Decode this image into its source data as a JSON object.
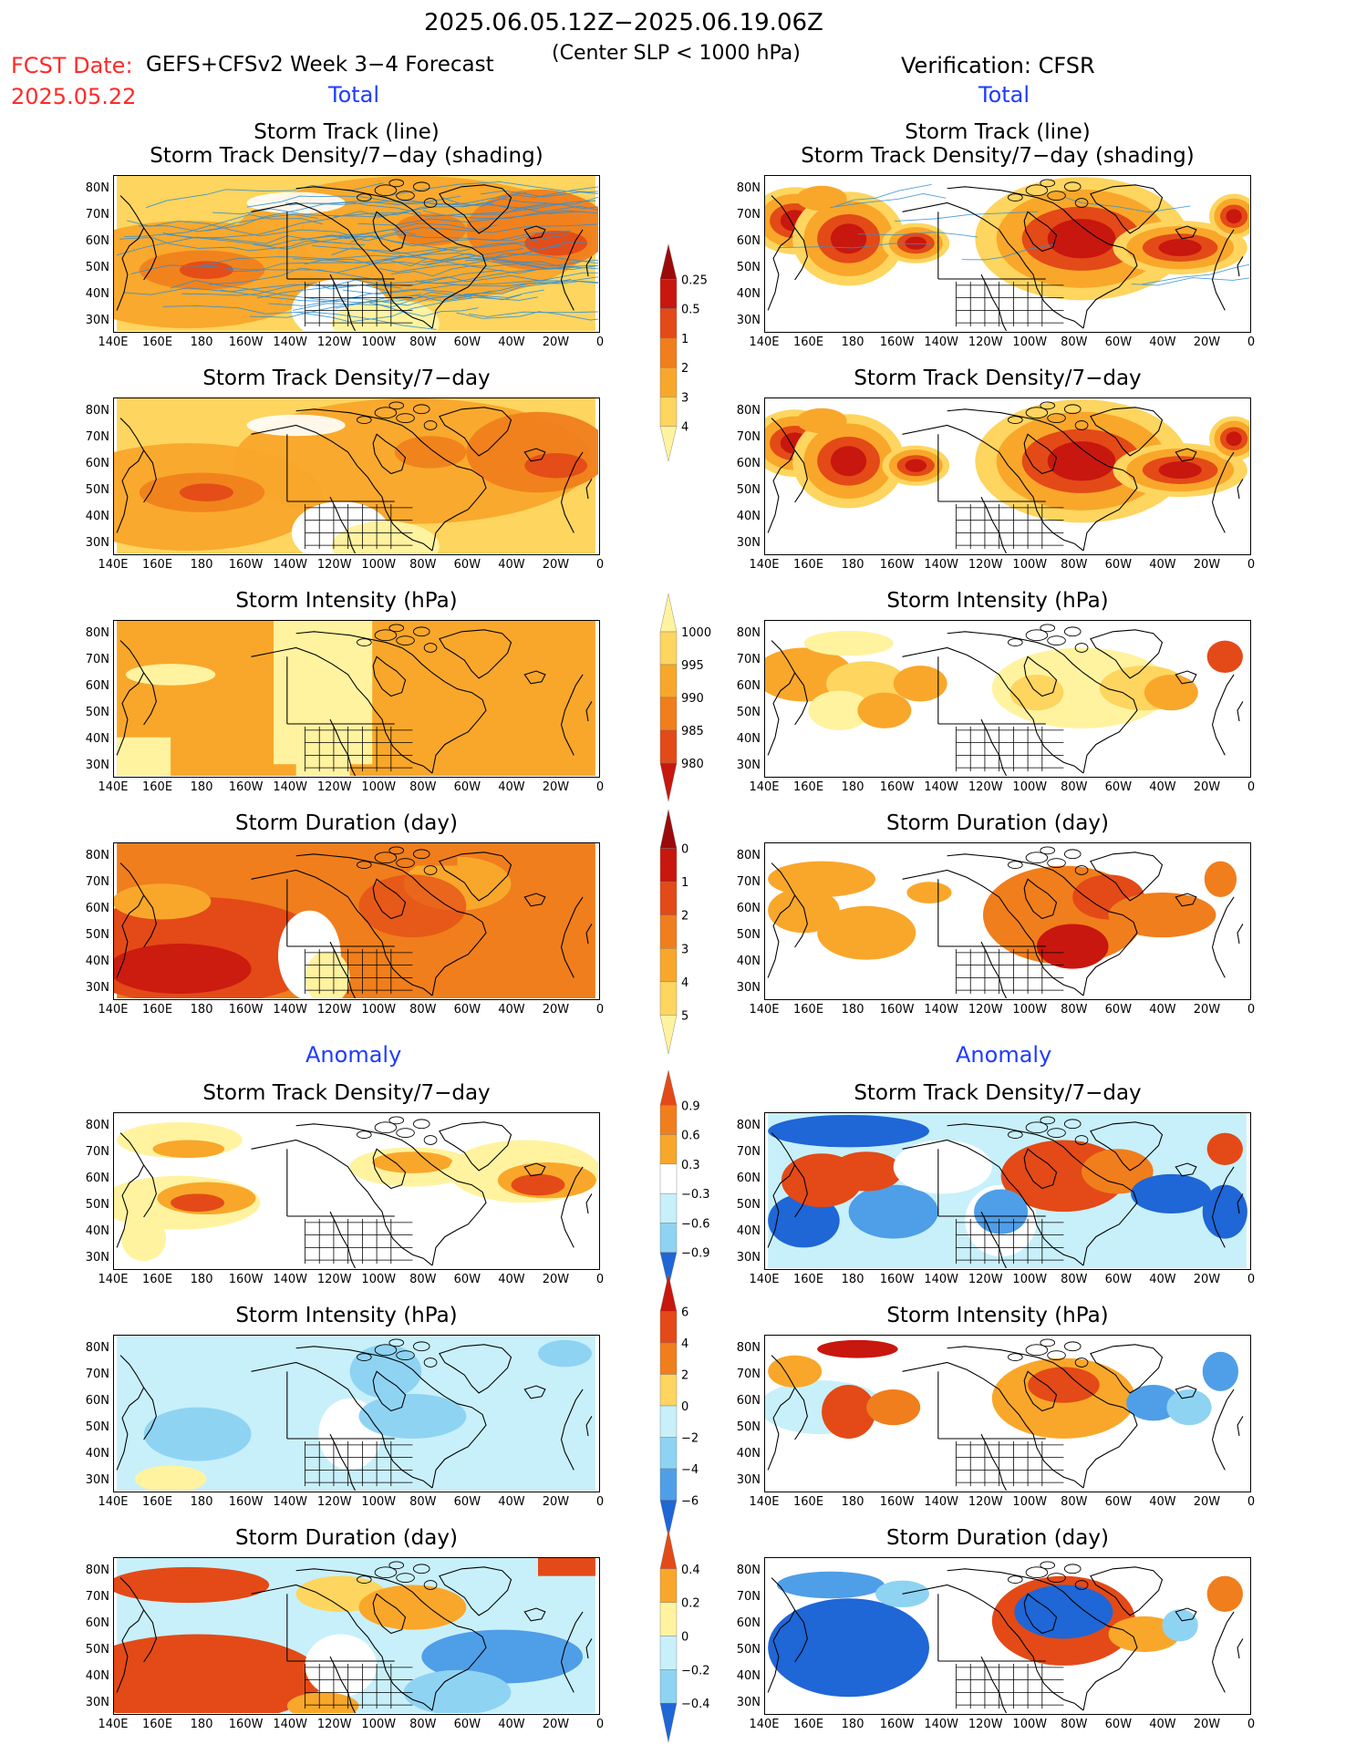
{
  "header": {
    "date_range": "2025.06.05.12Z−2025.06.19.06Z",
    "criterion": "(Center SLP < 1000 hPa)",
    "fcst_date_label": "FCST Date:",
    "fcst_date_value": "2025.05.22",
    "model_label": "GEFS+CFSv2 Week 3−4 Forecast",
    "verification_label": "Verification: CFSR"
  },
  "sections": {
    "total_left": "Total",
    "total_right": "Total",
    "anomaly_left": "Anomaly",
    "anomaly_right": "Anomaly"
  },
  "panel_titles": {
    "track_line": "Storm Track (line)",
    "track_shading": "Storm Track Density/7−day (shading)",
    "density": "Storm Track Density/7−day",
    "intensity": "Storm Intensity (hPa)",
    "duration": "Storm Duration (day)"
  },
  "axes": {
    "lat_ticks": [
      "80N",
      "70N",
      "60N",
      "50N",
      "40N",
      "30N"
    ],
    "lon_ticks": [
      "140E",
      "160E",
      "180",
      "160W",
      "140W",
      "120W",
      "100W",
      "80W",
      "60W",
      "40W",
      "20W",
      "0"
    ]
  },
  "colorbars": {
    "density_total": [
      "0.25",
      "0.5",
      "1",
      "2",
      "3",
      "4"
    ],
    "intensity_total": [
      "1000",
      "995",
      "990",
      "985",
      "980"
    ],
    "duration_total": [
      "0",
      "1",
      "2",
      "3",
      "4",
      "5"
    ],
    "density_anom": [
      "0.9",
      "0.6",
      "0.3",
      "−0.3",
      "−0.6",
      "−0.9"
    ],
    "intensity_anom": [
      "6",
      "4",
      "2",
      "0",
      "−2",
      "−4",
      "−6"
    ],
    "duration_anom": [
      "0.4",
      "0.2",
      "0",
      "−0.2",
      "−0.4"
    ]
  },
  "colors": {
    "c1": "#fff3a0",
    "c2": "#fdd55f",
    "c3": "#f9a72a",
    "c4": "#f07e1c",
    "c5": "#e34a17",
    "c6": "#c8170e",
    "c7": "#9b0a0a",
    "b1": "#c8f0fa",
    "b2": "#8fd3f3",
    "b3": "#4f9ee8",
    "b4": "#1f66d6",
    "track": "#2f8fd6",
    "outline": "#000000",
    "header_red": "#ff2a2a",
    "section_blue": "#1f3cff"
  }
}
